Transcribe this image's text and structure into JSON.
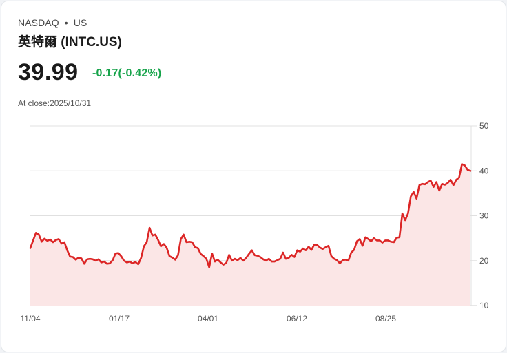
{
  "header": {
    "exchange": "NASDAQ",
    "separator": "•",
    "market": "US",
    "title": "英特爾 (INTC.US)",
    "price": "39.99",
    "change": "-0.17(-0.42%)",
    "close_label": "At close:2025/10/31"
  },
  "colors": {
    "line": "#dc2626",
    "fill": "#fbe6e6",
    "change": "#16a34a",
    "grid": "#e0e0e0"
  },
  "chart_data": {
    "type": "area",
    "title": "英特爾 (INTC.US)",
    "xlabel": "",
    "ylabel": "",
    "ylim": [
      10,
      50
    ],
    "yticks": [
      10,
      20,
      30,
      40,
      50
    ],
    "xtick_labels": [
      "11/04",
      "01/17",
      "04/01",
      "06/12",
      "08/25"
    ],
    "grid": true,
    "legend": "none",
    "series": [
      {
        "name": "INTC",
        "values": [
          22.8,
          24.5,
          26.2,
          25.8,
          24.2,
          24.9,
          24.4,
          24.7,
          24.1,
          24.6,
          24.8,
          23.8,
          24.1,
          22.3,
          20.9,
          20.8,
          20.2,
          20.7,
          20.5,
          19.3,
          20.3,
          20.4,
          20.3,
          20.0,
          20.3,
          19.6,
          19.8,
          19.3,
          19.4,
          20.1,
          21.6,
          21.7,
          21.0,
          20.0,
          19.6,
          19.8,
          19.4,
          19.7,
          19.2,
          20.6,
          23.2,
          24.1,
          27.3,
          25.6,
          25.8,
          24.6,
          23.2,
          23.7,
          22.9,
          21.0,
          20.7,
          20.2,
          21.2,
          24.8,
          25.8,
          24.1,
          24.2,
          24.1,
          23.0,
          22.8,
          21.5,
          21.0,
          20.4,
          18.5,
          21.6,
          19.8,
          20.2,
          19.6,
          19.1,
          19.5,
          21.3,
          20.0,
          20.4,
          20.1,
          20.6,
          20.0,
          20.6,
          21.5,
          22.3,
          21.2,
          21.1,
          20.8,
          20.3,
          20.0,
          20.4,
          19.8,
          19.8,
          20.1,
          20.4,
          21.8,
          20.4,
          20.6,
          21.3,
          20.8,
          22.3,
          22.0,
          22.7,
          22.3,
          23.1,
          22.4,
          23.6,
          23.5,
          22.9,
          22.6,
          23.0,
          23.3,
          21.0,
          20.4,
          20.1,
          19.4,
          20.1,
          20.2,
          20.0,
          21.8,
          22.4,
          24.3,
          24.8,
          23.3,
          25.2,
          24.8,
          24.3,
          25.0,
          24.5,
          24.5,
          24.0,
          24.5,
          24.5,
          24.2,
          24.1,
          25.1,
          25.2,
          30.5,
          29.0,
          30.5,
          34.3,
          35.3,
          33.8,
          36.8,
          37.1,
          37.0,
          37.5,
          37.8,
          36.4,
          37.5,
          35.6,
          37.1,
          36.9,
          37.3,
          38.0,
          36.8,
          38.0,
          38.5,
          41.5,
          41.2,
          40.2,
          39.99
        ]
      }
    ]
  }
}
